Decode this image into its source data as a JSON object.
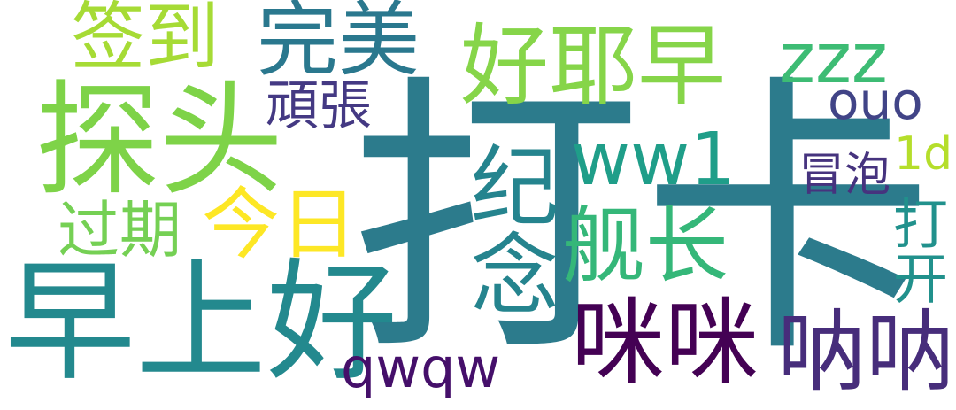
{
  "cloud": {
    "words": {
      "daka": {
        "text": "打卡",
        "color": "#2c7b8c"
      },
      "tantou": {
        "text": "探头",
        "color": "#7ed348"
      },
      "zaoshanghao": {
        "text": "早上好",
        "color": "#23898e"
      },
      "qiandao": {
        "text": "签到",
        "color": "#a6db35"
      },
      "wanmei": {
        "text": "完美",
        "color": "#2a788e"
      },
      "haoyezao": {
        "text": "好耶早",
        "color": "#86d549"
      },
      "zzz": {
        "text": "zzz",
        "color": "#3dbc74"
      },
      "ouo": {
        "text": "ouo",
        "color": "#414487"
      },
      "wanzhang": {
        "text": "頑張",
        "color": "#443983"
      },
      "ww1": {
        "text": "ww1",
        "color": "#1f9e89"
      },
      "maopao": {
        "text": "冒泡",
        "color": "#46337e"
      },
      "1d": {
        "text": "1d",
        "color": "#b5de2b"
      },
      "jinian": {
        "text": "纪念",
        "color": "#25848e"
      },
      "guoqi": {
        "text": "过期",
        "color": "#75d054"
      },
      "jinri": {
        "text": "今日",
        "color": "#fde725"
      },
      "jianzhang": {
        "text": "舰长",
        "color": "#35b779"
      },
      "dakai": {
        "text": "打开",
        "color": "#21918c"
      },
      "mimi": {
        "text": "咪咪",
        "color": "#440154"
      },
      "nana": {
        "text": "呐呐",
        "color": "#472d7b"
      },
      "qwqw": {
        "text": "qwqw",
        "color": "#450f6a"
      }
    }
  }
}
